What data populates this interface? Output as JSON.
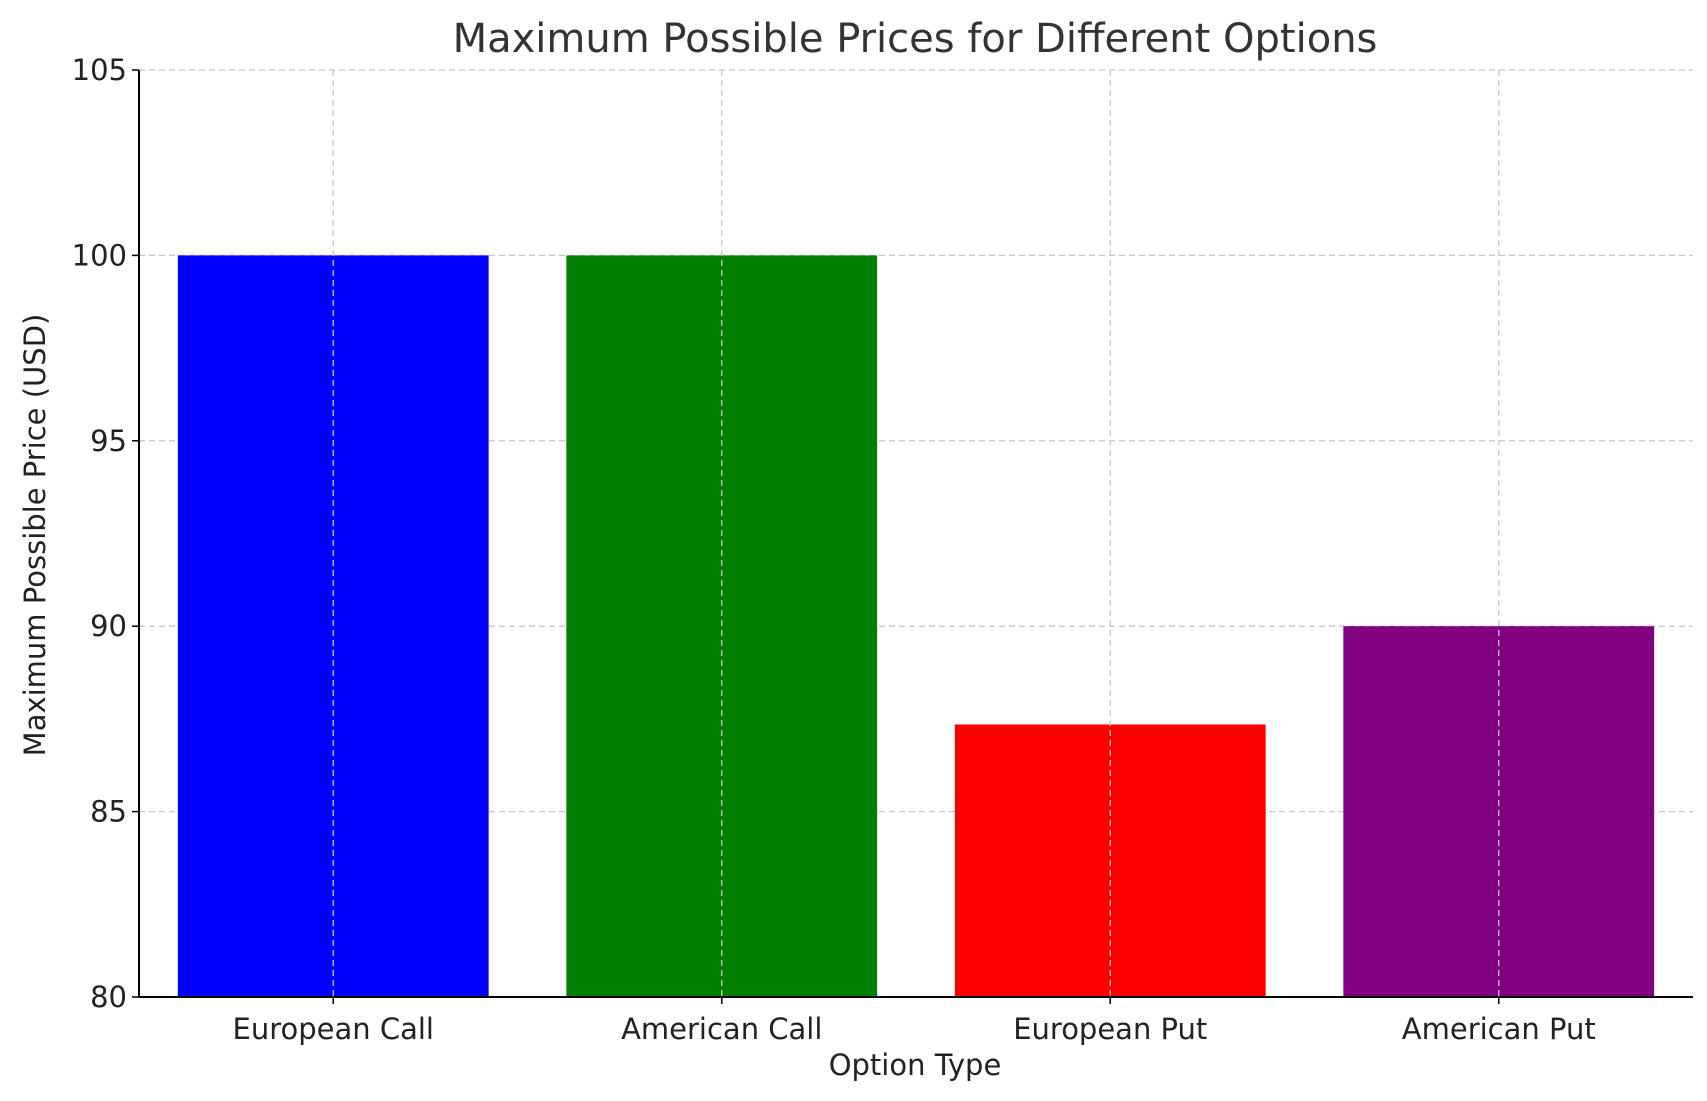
{
  "chart_data": {
    "type": "bar",
    "title": "Maximum Possible Prices for Different Options",
    "xlabel": "Option Type",
    "ylabel": "Maximum Possible Price (USD)",
    "categories": [
      "European Call",
      "American Call",
      "European Put",
      "American Put"
    ],
    "values": [
      100,
      100,
      87.35,
      90
    ],
    "colors": [
      "#0000ff",
      "#008000",
      "#ff0000",
      "#800080"
    ],
    "ylim": [
      80,
      105
    ],
    "yticks": [
      80,
      85,
      90,
      95,
      100,
      105
    ],
    "grid": true
  }
}
